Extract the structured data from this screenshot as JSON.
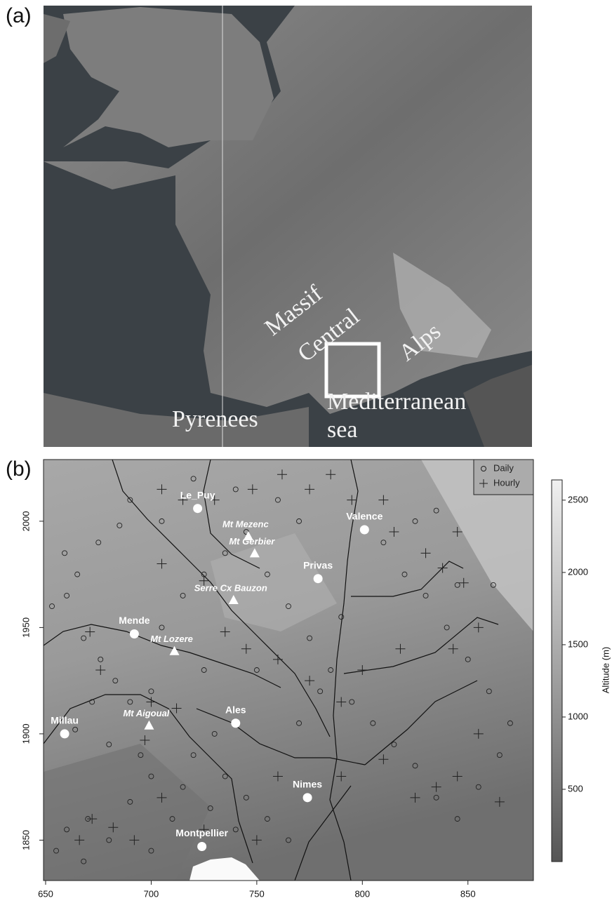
{
  "panel_a": {
    "label": "(a)",
    "labels": [
      "Massif",
      "Central",
      "Alps",
      "Mediterranean",
      "sea",
      "Pyrenees"
    ]
  },
  "panel_b": {
    "label": "(b)",
    "xlim": [
      649,
      881
    ],
    "ylim": [
      1831,
      2029
    ],
    "xticks": [
      650,
      700,
      750,
      800,
      850
    ],
    "yticks": [
      1850,
      1900,
      1950,
      2000
    ],
    "cities": [
      {
        "name": "Le_Puy",
        "x": 722,
        "y": 2006
      },
      {
        "name": "Valence",
        "x": 801,
        "y": 1996
      },
      {
        "name": "Privas",
        "x": 779,
        "y": 1973
      },
      {
        "name": "Mende",
        "x": 692,
        "y": 1947
      },
      {
        "name": "Millau",
        "x": 659,
        "y": 1900
      },
      {
        "name": "Ales",
        "x": 740,
        "y": 1905
      },
      {
        "name": "Nimes",
        "x": 774,
        "y": 1870
      },
      {
        "name": "Montpellier",
        "x": 724,
        "y": 1847
      }
    ],
    "summits": [
      {
        "name": "Mt Mezenc",
        "x": 746,
        "y": 1993
      },
      {
        "name": "Mt Gerbier",
        "x": 749,
        "y": 1985
      },
      {
        "name": "Serre Cx Bauzon",
        "x": 739,
        "y": 1963
      },
      {
        "name": "Mt Lozere",
        "x": 711,
        "y": 1939
      },
      {
        "name": "Mt Aigoual",
        "x": 699,
        "y": 1904
      }
    ],
    "stations_daily": {
      "name": "Daily",
      "x": [
        653,
        660,
        665,
        659,
        675,
        685,
        668,
        676,
        683,
        690,
        672,
        664,
        680,
        695,
        700,
        690,
        670,
        660,
        655,
        668,
        680,
        700,
        710,
        715,
        720,
        730,
        735,
        745,
        755,
        765,
        740,
        728,
        705,
        715,
        725,
        735,
        745,
        760,
        770,
        755,
        765,
        775,
        785,
        795,
        805,
        815,
        825,
        835,
        845,
        855,
        865,
        870,
        860,
        850,
        840,
        830,
        820,
        810,
        825,
        835,
        845,
        862,
        790,
        780,
        770,
        750,
        725,
        700,
        705,
        690,
        720,
        740
      ],
      "y": [
        1960,
        1965,
        1975,
        1985,
        1990,
        1998,
        1945,
        1935,
        1925,
        1915,
        1915,
        1902,
        1895,
        1890,
        1880,
        1868,
        1860,
        1855,
        1845,
        1840,
        1850,
        1845,
        1860,
        1875,
        1890,
        1900,
        1880,
        1870,
        1860,
        1850,
        1855,
        1865,
        1950,
        1965,
        1975,
        1985,
        1995,
        2010,
        2000,
        1975,
        1960,
        1945,
        1930,
        1915,
        1905,
        1895,
        1885,
        1870,
        1860,
        1875,
        1890,
        1905,
        1920,
        1935,
        1950,
        1965,
        1975,
        1990,
        2000,
        2005,
        1970,
        1970,
        1955,
        1920,
        1905,
        1930,
        1930,
        1920,
        2000,
        2010,
        2020,
        2015
      ]
    },
    "stations_hourly": {
      "name": "Hourly",
      "x": [
        671,
        676,
        715,
        705,
        730,
        748,
        762,
        775,
        785,
        795,
        810,
        815,
        830,
        845,
        838,
        848,
        855,
        843,
        818,
        800,
        790,
        775,
        760,
        745,
        735,
        725,
        705,
        700,
        712,
        697,
        705,
        692,
        666,
        672,
        682,
        725,
        750,
        760,
        790,
        810,
        825,
        835,
        845,
        855,
        865
      ],
      "y": [
        1948,
        1930,
        2010,
        2015,
        2010,
        2015,
        2022,
        2015,
        2022,
        2010,
        2010,
        1995,
        1985,
        1995,
        1978,
        1971,
        1950,
        1940,
        1940,
        1930,
        1915,
        1925,
        1935,
        1940,
        1948,
        1972,
        1980,
        1915,
        1912,
        1897,
        1870,
        1850,
        1850,
        1860,
        1856,
        1855,
        1850,
        1880,
        1880,
        1888,
        1870,
        1875,
        1880,
        1900,
        1868
      ]
    },
    "colorbar": {
      "title": "Altitude (m)",
      "lim": [
        0,
        2640
      ],
      "ticks": [
        500,
        1000,
        1500,
        2000,
        2500
      ]
    }
  }
}
